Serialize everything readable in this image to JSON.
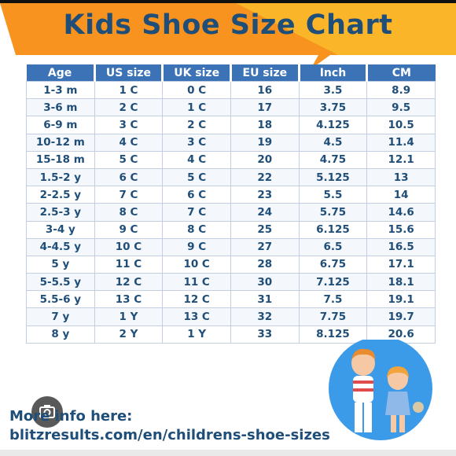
{
  "title": "Kids Shoe Size Chart",
  "colors": {
    "banner_orange": "#f7931e",
    "banner_yellow": "#fbc02d",
    "title_blue": "#1f4e79",
    "header_blue": "#3c73b6"
  },
  "table": {
    "headers": [
      "Age",
      "US size",
      "UK size",
      "EU size",
      "Inch",
      "CM"
    ],
    "rows": [
      [
        "1-3 m",
        "1 C",
        "0 C",
        "16",
        "3.5",
        "8.9"
      ],
      [
        "3-6 m",
        "2 C",
        "1 C",
        "17",
        "3.75",
        "9.5"
      ],
      [
        "6-9 m",
        "3 C",
        "2 C",
        "18",
        "4.125",
        "10.5"
      ],
      [
        "10-12 m",
        "4 C",
        "3 C",
        "19",
        "4.5",
        "11.4"
      ],
      [
        "15-18 m",
        "5 C",
        "4 C",
        "20",
        "4.75",
        "12.1"
      ],
      [
        "1.5-2 y",
        "6 C",
        "5 C",
        "22",
        "5.125",
        "13"
      ],
      [
        "2-2.5 y",
        "7 C",
        "6 C",
        "23",
        "5.5",
        "14"
      ],
      [
        "2.5-3 y",
        "8 C",
        "7 C",
        "24",
        "5.75",
        "14.6"
      ],
      [
        "3-4 y",
        "9 C",
        "8 C",
        "25",
        "6.125",
        "15.6"
      ],
      [
        "4-4.5 y",
        "10 C",
        "9 C",
        "27",
        "6.5",
        "16.5"
      ],
      [
        "5 y",
        "11 C",
        "10 C",
        "28",
        "6.75",
        "17.1"
      ],
      [
        "5-5.5 y",
        "12 C",
        "11 C",
        "30",
        "7.125",
        "18.1"
      ],
      [
        "5.5-6 y",
        "13 C",
        "12 C",
        "31",
        "7.5",
        "19.1"
      ],
      [
        "7 y",
        "1 Y",
        "13 C",
        "32",
        "7.75",
        "19.7"
      ],
      [
        "8 y",
        "2 Y",
        "1 Y",
        "33",
        "8.125",
        "20.6"
      ]
    ]
  },
  "footer": {
    "line1": "More info here:",
    "line2": "blitzresults.com/en/childrens-shoe-sizes"
  },
  "overlay_icon": "camera-icon",
  "illustration": "kids-illustration"
}
